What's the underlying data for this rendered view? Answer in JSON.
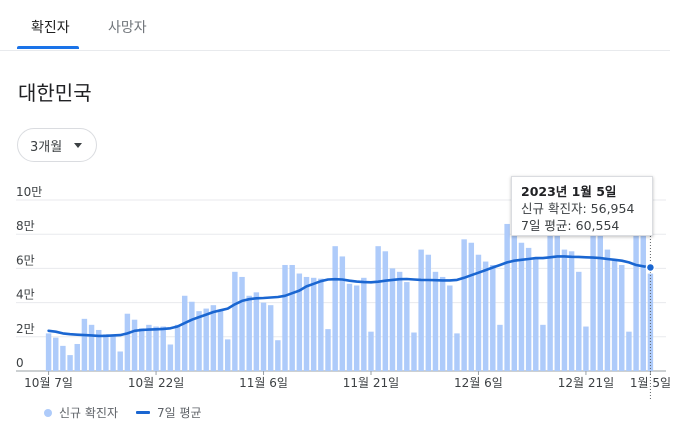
{
  "tabs": [
    {
      "label": "확진자",
      "active": true
    },
    {
      "label": "사망자",
      "active": false
    }
  ],
  "region": "대한민국",
  "range_select": {
    "value": "3개월"
  },
  "legend": {
    "bars": "신규 확진자",
    "line": "7일 평균"
  },
  "tooltip": {
    "date": "2023년 1월 5일",
    "new_cases_line": "신규 확진자: 56,954",
    "avg_line": "7일 평균: 60,554"
  },
  "colors": {
    "bar": "#aecbfa",
    "line": "#1a66d1",
    "accent": "#1a73e8",
    "grid": "#e8eaed"
  },
  "chart_data": {
    "type": "bar",
    "start_date": "2022-10-07",
    "x_tick_labels": [
      "10월 7일",
      "10월 22일",
      "11월 6일",
      "11월 21일",
      "12월 6일",
      "12월 21일",
      "1월 5일"
    ],
    "y_tick_labels": [
      "0",
      "2만",
      "4만",
      "6만",
      "8만",
      "10만"
    ],
    "ylim": [
      0,
      100000
    ],
    "grid": true,
    "series": [
      {
        "name": "신규 확진자",
        "type": "bar",
        "values": [
          22000,
          19500,
          14700,
          9300,
          15800,
          30500,
          27000,
          24000,
          21500,
          21000,
          11400,
          33500,
          30000,
          25000,
          27000,
          26000,
          26000,
          15500,
          27000,
          44000,
          40500,
          35000,
          36500,
          38500,
          36000,
          18500,
          58000,
          55000,
          44000,
          46000,
          40000,
          38500,
          18000,
          62000,
          62000,
          57000,
          55000,
          54500,
          54000,
          24500,
          73000,
          67000,
          51000,
          50000,
          54500,
          23000,
          73000,
          70000,
          60000,
          58000,
          52000,
          22500,
          71000,
          68000,
          58000,
          55000,
          50000,
          22000,
          77000,
          75000,
          68000,
          64000,
          62000,
          27000,
          86000,
          82000,
          75000,
          72000,
          66000,
          27000,
          84000,
          85000,
          71000,
          70000,
          58000,
          26000,
          88000,
          86000,
          71000,
          65000,
          62000,
          23000,
          88000,
          79000,
          56954
        ],
        "color": "#aecbfa"
      },
      {
        "name": "7일 평균",
        "type": "line",
        "values": [
          23500,
          23000,
          22000,
          21500,
          21200,
          21000,
          20800,
          20500,
          20600,
          20800,
          21000,
          22000,
          23500,
          24000,
          24200,
          24400,
          24600,
          25000,
          26000,
          28000,
          30000,
          31500,
          33000,
          34500,
          35500,
          36500,
          39000,
          41000,
          42000,
          42500,
          42700,
          43000,
          43300,
          44000,
          45500,
          47000,
          49500,
          51000,
          52500,
          53500,
          53700,
          53500,
          52800,
          52300,
          52000,
          51900,
          52200,
          52800,
          53300,
          53700,
          53800,
          53500,
          53300,
          53200,
          53100,
          53000,
          53000,
          53300,
          54500,
          56000,
          57500,
          59000,
          60500,
          62000,
          63500,
          64500,
          65000,
          65500,
          66000,
          66000,
          66500,
          67000,
          67000,
          66800,
          66700,
          66500,
          66300,
          66000,
          65500,
          65000,
          64500,
          63500,
          62000,
          61200,
          60554
        ],
        "color": "#1a66d1"
      }
    ],
    "tooltip_index": 84
  }
}
